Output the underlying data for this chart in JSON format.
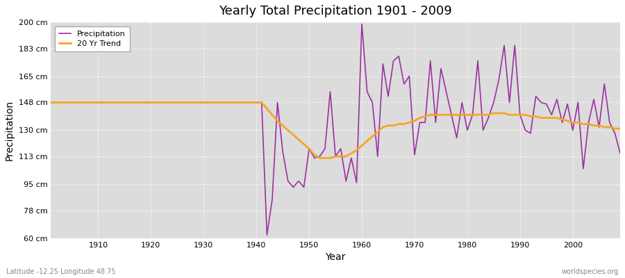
{
  "title": "Yearly Total Precipitation 1901 - 2009",
  "xlabel": "Year",
  "ylabel": "Precipitation",
  "lat_lon_label": "Latitude -12.25 Longitude 48.75",
  "watermark": "worldspecies.org",
  "fig_bg_color": "#ffffff",
  "plot_bg_color": "#dcdcdc",
  "precip_color": "#9b30a0",
  "trend_color": "#f5a623",
  "precip_label": "Precipitation",
  "trend_label": "20 Yr Trend",
  "ylim": [
    60,
    200
  ],
  "yticks": [
    60,
    78,
    95,
    113,
    130,
    148,
    165,
    183,
    200
  ],
  "ytick_labels": [
    "60 cm",
    "78 cm",
    "95 cm",
    "113 cm",
    "130 cm",
    "148 cm",
    "165 cm",
    "183 cm",
    "200 cm"
  ],
  "xlim": [
    1901,
    2009
  ],
  "xticks": [
    1910,
    1920,
    1930,
    1940,
    1950,
    1960,
    1970,
    1980,
    1990,
    2000
  ],
  "years": [
    1901,
    1902,
    1903,
    1904,
    1905,
    1906,
    1907,
    1908,
    1909,
    1910,
    1911,
    1912,
    1913,
    1914,
    1915,
    1916,
    1917,
    1918,
    1919,
    1920,
    1921,
    1922,
    1923,
    1924,
    1925,
    1926,
    1927,
    1928,
    1929,
    1930,
    1931,
    1932,
    1933,
    1934,
    1935,
    1936,
    1937,
    1938,
    1939,
    1940,
    1941,
    1942,
    1943,
    1944,
    1945,
    1946,
    1947,
    1948,
    1949,
    1950,
    1951,
    1952,
    1953,
    1954,
    1955,
    1956,
    1957,
    1958,
    1959,
    1960,
    1961,
    1962,
    1963,
    1964,
    1965,
    1966,
    1967,
    1968,
    1969,
    1970,
    1971,
    1972,
    1973,
    1974,
    1975,
    1976,
    1977,
    1978,
    1979,
    1980,
    1981,
    1982,
    1983,
    1984,
    1985,
    1986,
    1987,
    1988,
    1989,
    1990,
    1991,
    1992,
    1993,
    1994,
    1995,
    1996,
    1997,
    1998,
    1999,
    2000,
    2001,
    2002,
    2003,
    2004,
    2005,
    2006,
    2007,
    2008,
    2009
  ],
  "precip": [
    148,
    148,
    148,
    148,
    148,
    148,
    148,
    148,
    148,
    148,
    148,
    148,
    148,
    148,
    148,
    148,
    148,
    148,
    148,
    148,
    148,
    148,
    148,
    148,
    148,
    148,
    148,
    148,
    148,
    148,
    148,
    148,
    148,
    148,
    148,
    148,
    148,
    148,
    148,
    148,
    148,
    62,
    85,
    148,
    116,
    97,
    93,
    97,
    93,
    118,
    112,
    113,
    118,
    155,
    113,
    118,
    97,
    112,
    96,
    199,
    155,
    148,
    113,
    173,
    152,
    175,
    178,
    160,
    165,
    114,
    135,
    135,
    175,
    135,
    170,
    155,
    140,
    125,
    148,
    130,
    140,
    175,
    130,
    138,
    148,
    163,
    185,
    148,
    185,
    140,
    130,
    128,
    152,
    148,
    147,
    140,
    150,
    135,
    147,
    130,
    148,
    105,
    135,
    150,
    132,
    160,
    135,
    128,
    115
  ],
  "trend": [
    148,
    148,
    148,
    148,
    148,
    148,
    148,
    148,
    148,
    148,
    148,
    148,
    148,
    148,
    148,
    148,
    148,
    148,
    148,
    148,
    148,
    148,
    148,
    148,
    148,
    148,
    148,
    148,
    148,
    148,
    148,
    148,
    148,
    148,
    148,
    148,
    148,
    148,
    148,
    148,
    148,
    144,
    140,
    136,
    133,
    130,
    127,
    124,
    121,
    118,
    114,
    112,
    112,
    112,
    113,
    113,
    113,
    115,
    117,
    120,
    123,
    126,
    129,
    132,
    133,
    133,
    134,
    134,
    135,
    136,
    138,
    139,
    140,
    140,
    140,
    140,
    140,
    140,
    140,
    140,
    140,
    140,
    140,
    140,
    141,
    141,
    141,
    140,
    140,
    140,
    140,
    139,
    139,
    138,
    138,
    138,
    138,
    137,
    136,
    135,
    135,
    134,
    134,
    133,
    133,
    132,
    132,
    131,
    131
  ]
}
